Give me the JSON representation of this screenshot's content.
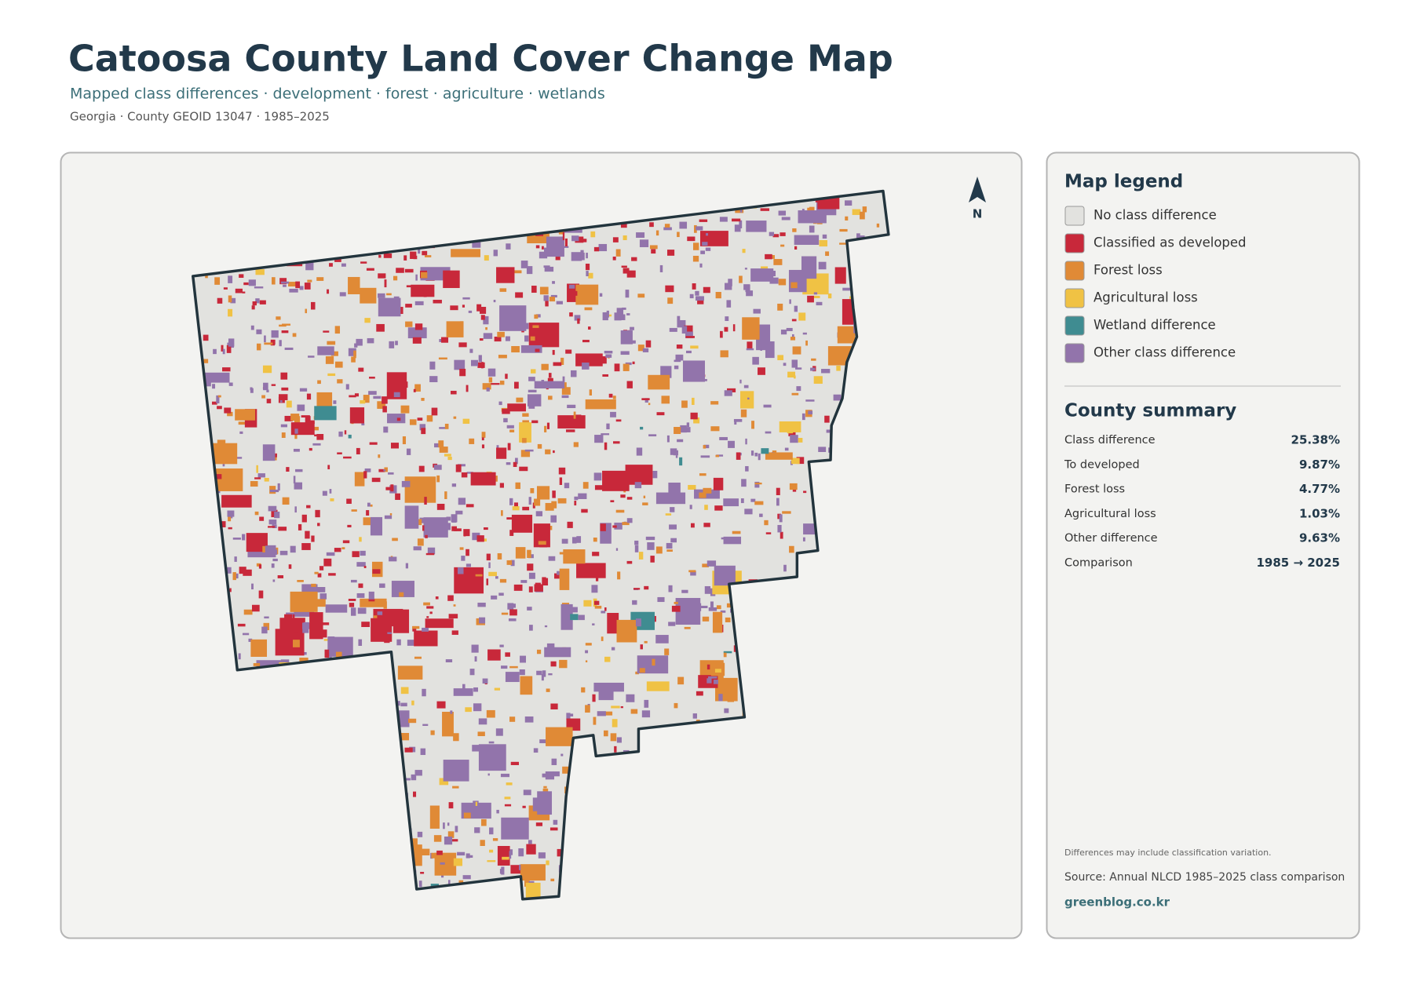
{
  "header": {
    "title": "Catoosa County Land Cover Change Map",
    "subtitle": "Mapped class differences · development · forest · agriculture · wetlands",
    "meta": "Georgia · County GEOID 13047 · 1985–2025"
  },
  "map": {
    "north": "N"
  },
  "legend": {
    "title": "Map legend",
    "items": [
      {
        "label": "No class difference",
        "color": "#e2e2df"
      },
      {
        "label": "Classified as developed",
        "color": "#c8283a"
      },
      {
        "label": "Forest loss",
        "color": "#e08a36"
      },
      {
        "label": "Agricultural loss",
        "color": "#f0c244"
      },
      {
        "label": "Wetland difference",
        "color": "#3f8c91"
      },
      {
        "label": "Other class difference",
        "color": "#9274ab"
      }
    ]
  },
  "summary": {
    "title": "County summary",
    "rows": [
      {
        "label": "Class difference",
        "value": "25.38%"
      },
      {
        "label": "To developed",
        "value": "9.87%"
      },
      {
        "label": "Forest loss",
        "value": "4.77%"
      },
      {
        "label": "Agricultural loss",
        "value": "1.03%"
      },
      {
        "label": "Other difference",
        "value": "9.63%"
      },
      {
        "label": "Comparison",
        "value": "1985 → 2025"
      }
    ]
  },
  "footer": {
    "note": "Differences may include classification variation.",
    "source": "Source: Annual NLCD 1985–2025 class comparison",
    "credit": "greenblog.co.kr"
  }
}
